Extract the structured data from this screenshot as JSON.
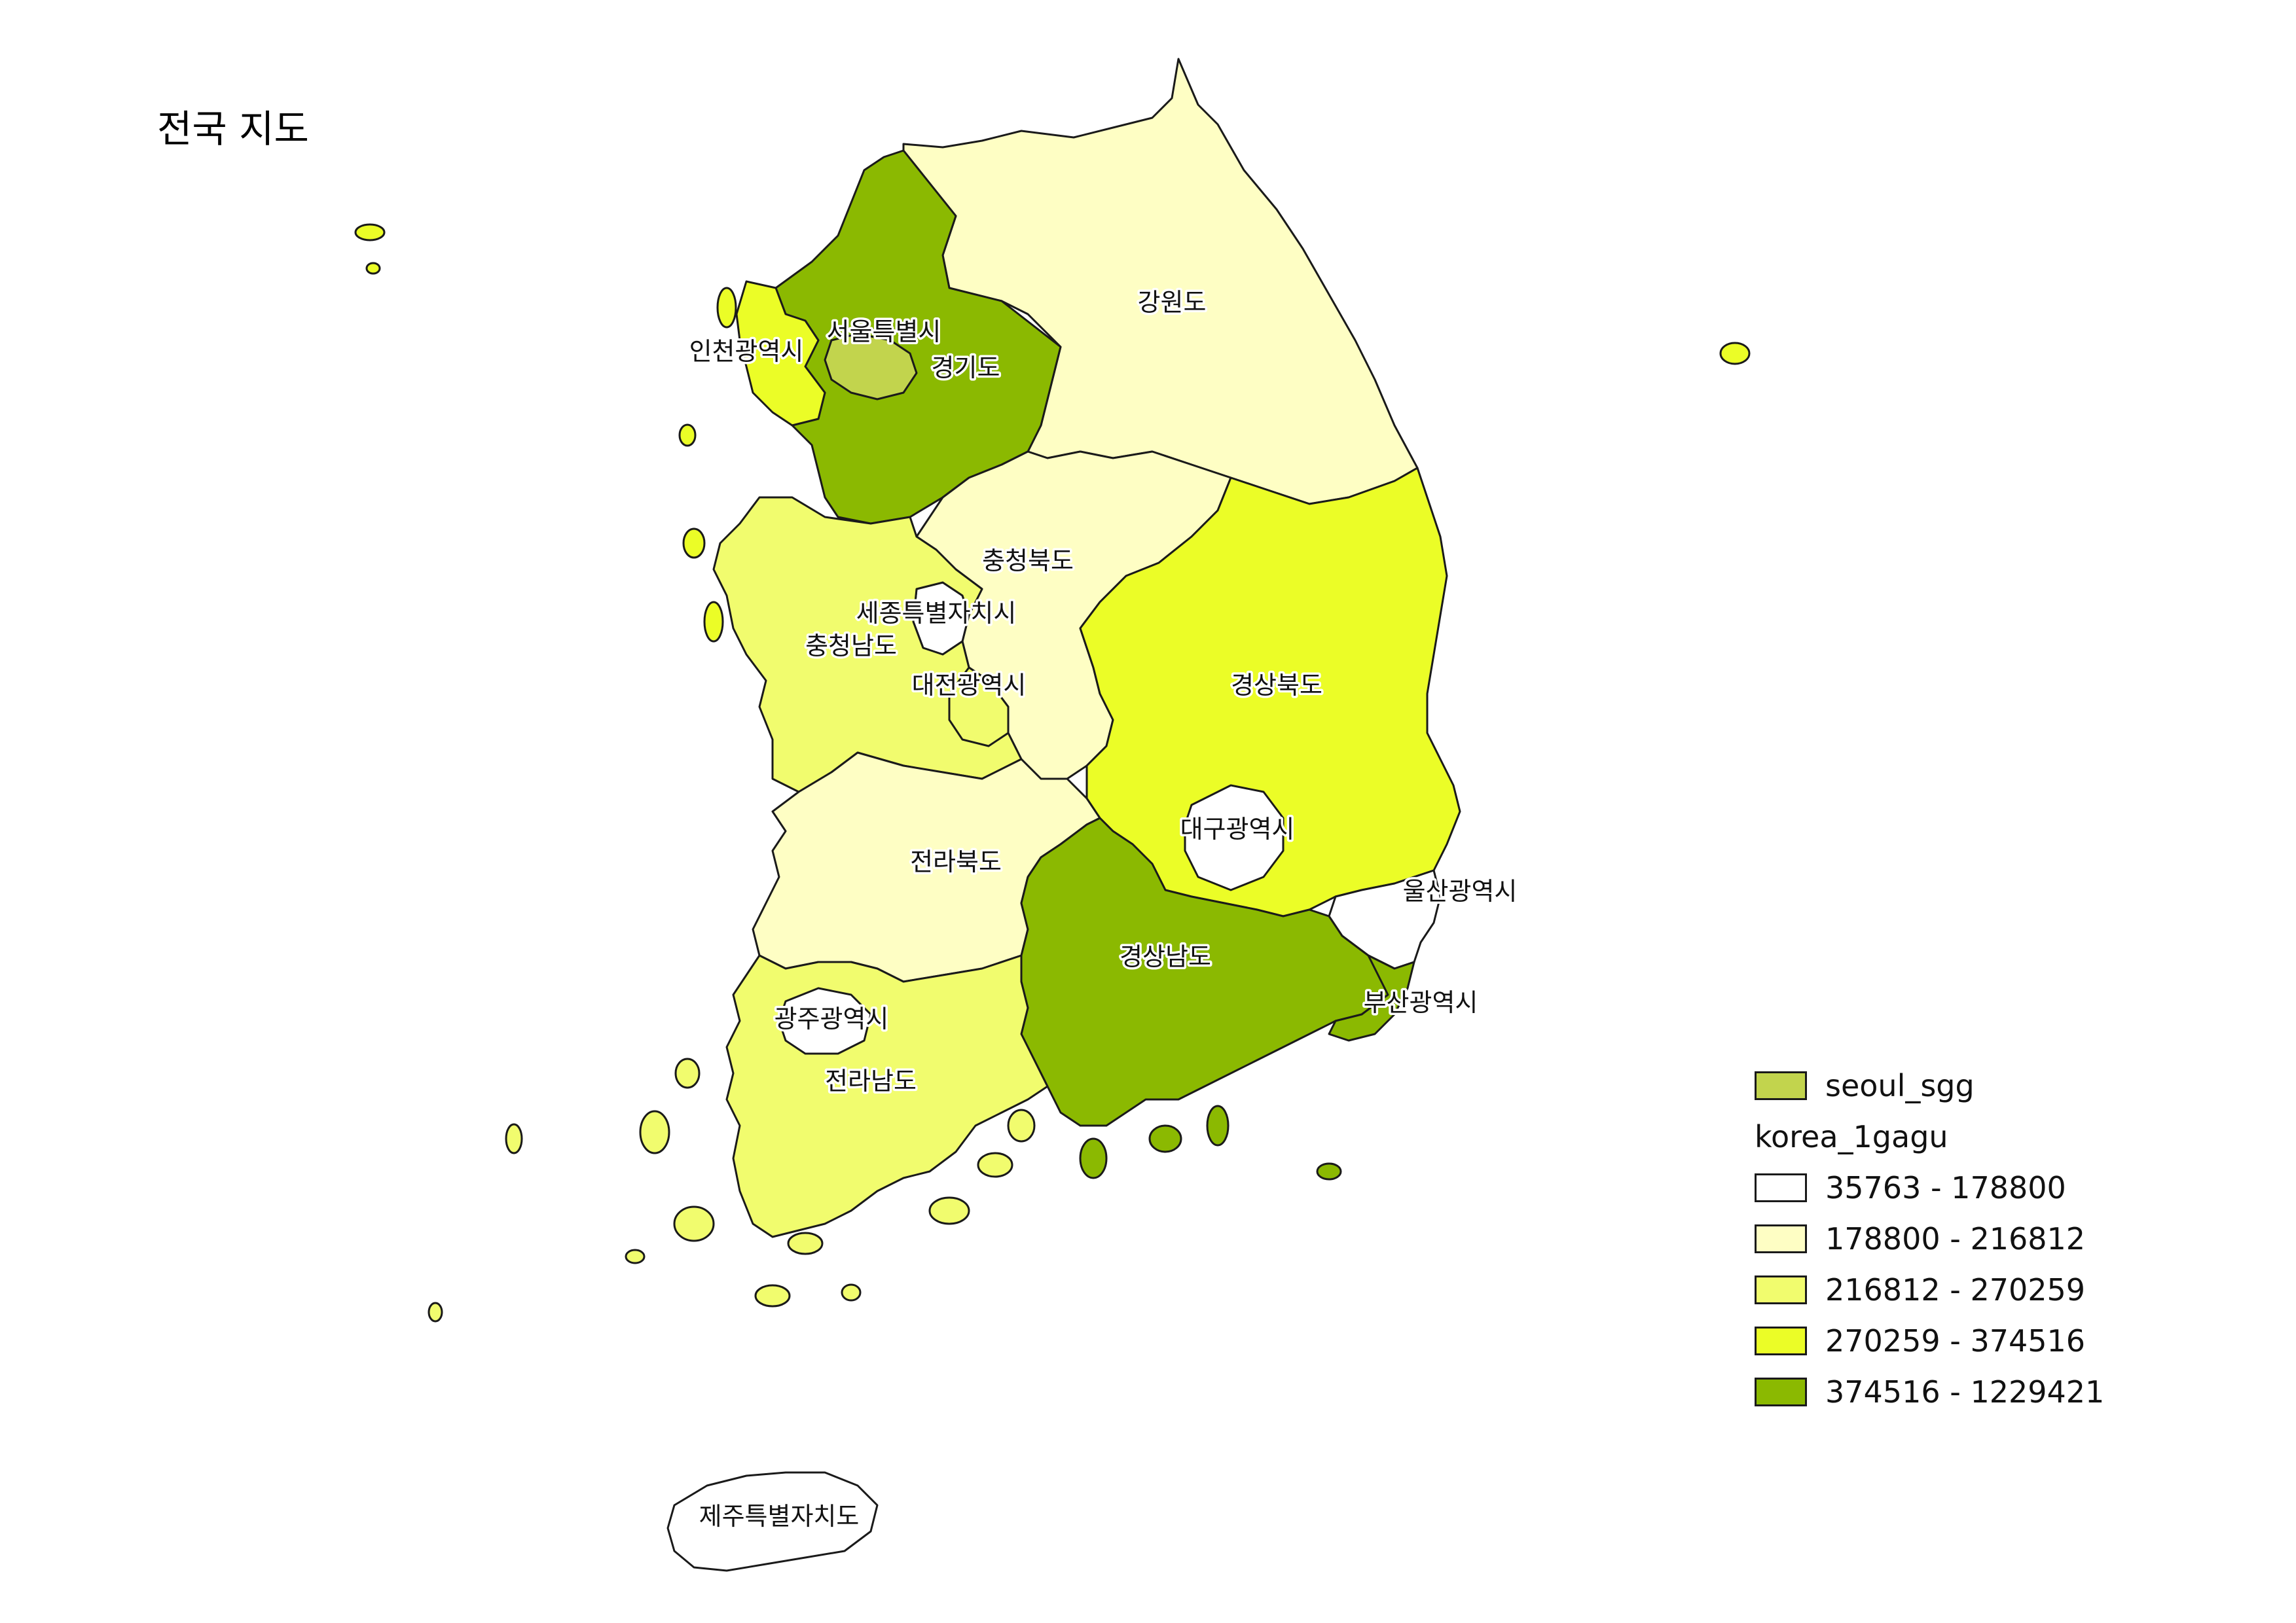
{
  "title": "전국 지도",
  "colors": {
    "class_1": "#ffffff",
    "class_2": "#fefec4",
    "class_3": "#f1fc6e",
    "class_4": "#ebfd27",
    "class_5": "#8bb901",
    "seoul_sgg": "#c2d44d"
  },
  "regions": {
    "gangwon": "강원도",
    "gyeonggi": "경기도",
    "seoul": "서울특별시",
    "incheon": "인천광역시",
    "chungbuk": "충청북도",
    "sejong": "세종특별자치시",
    "chungnam": "충청남도",
    "daejeon": "대전광역시",
    "gyeongbuk": "경상북도",
    "daegu": "대구광역시",
    "ulsan": "울산광역시",
    "jeonbuk": "전라북도",
    "gyeongnam": "경상남도",
    "busan": "부산광역시",
    "gwangju": "광주광역시",
    "jeonnam": "전라남도",
    "jeju": "제주특별자치도"
  },
  "legend": {
    "layer_1": "seoul_sgg",
    "layer_2_heading": "korea_1gagu",
    "classes": [
      "35763 - 178800",
      "178800 - 216812",
      "216812 - 270259",
      "270259 - 374516",
      "374516 - 1229421"
    ]
  }
}
